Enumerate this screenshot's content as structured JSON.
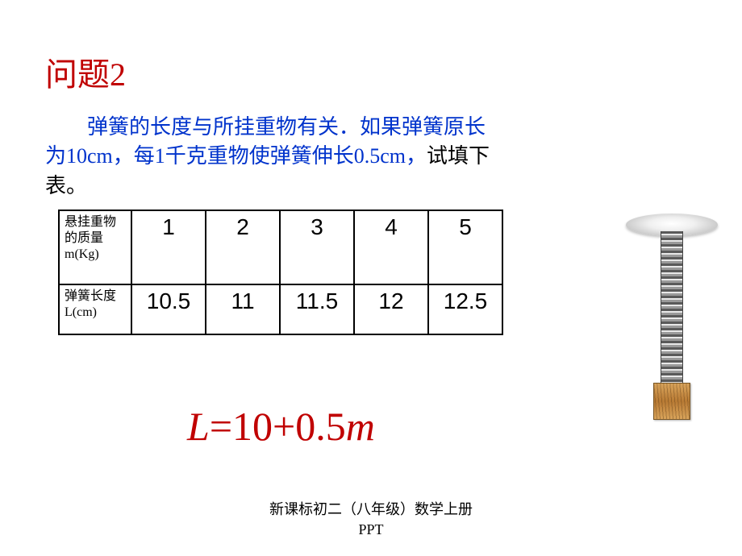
{
  "title": {
    "text": "问题2",
    "color": "#c00000"
  },
  "description": {
    "line1": "弹簧的长度与所挂重物有关．如果弹簧原长",
    "line2a": "为10cm，每1千克重物使弹簧伸长0.5cm，",
    "line2b": "试填下",
    "line3": "表。",
    "color_main": "#0033cc",
    "color_black": "#000000"
  },
  "table": {
    "row1_header": "悬挂重物的质量m(Kg)",
    "row2_header": "弹簧长度L(cm)",
    "masses": [
      "1",
      "2",
      "3",
      "4",
      "5"
    ],
    "lengths": [
      "10.5",
      "11",
      "11.5",
      "12",
      "12.5"
    ]
  },
  "formula": {
    "L": "L",
    "eq": "=10+0.5",
    "m": "m",
    "color": "#c00000"
  },
  "footer": {
    "line1": "新课标初二（八年级）数学上册",
    "line2": "PPT"
  }
}
